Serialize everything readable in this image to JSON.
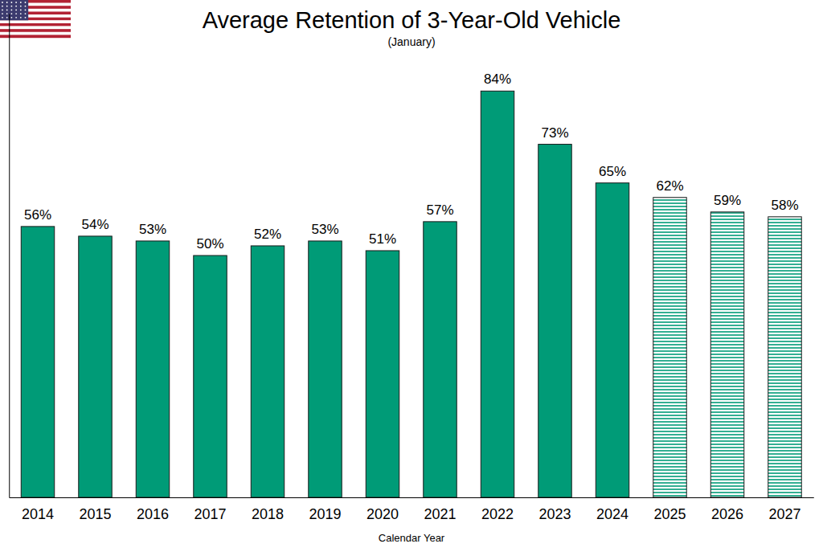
{
  "chart_data": {
    "type": "bar",
    "title": "Average Retention of 3-Year-Old Vehicle",
    "subtitle": "(January)",
    "x_label": "Calendar Year",
    "categories": [
      "2014",
      "2015",
      "2016",
      "2017",
      "2018",
      "2019",
      "2020",
      "2021",
      "2022",
      "2023",
      "2024",
      "2025",
      "2026",
      "2027"
    ],
    "values": [
      56,
      54,
      53,
      50,
      52,
      53,
      51,
      57,
      84,
      73,
      65,
      62,
      59,
      58
    ],
    "value_labels": [
      "56%",
      "54%",
      "53%",
      "50%",
      "52%",
      "53%",
      "51%",
      "57%",
      "84%",
      "73%",
      "65%",
      "62%",
      "59%",
      "58%"
    ],
    "color": "#009b77",
    "colors": [
      "#009b77",
      "#009b77",
      "#009b77",
      "#009b77",
      "#009b77",
      "#009b77",
      "#009b77",
      "#009b77",
      "#009b77",
      "#009b77",
      "#009b77",
      "#ffffff",
      "#ffffff",
      "#ffffff"
    ],
    "ylim": [
      0,
      100
    ],
    "yticks": [],
    "grid": false,
    "data_labels": true,
    "tick_labels": "x"
  }
}
